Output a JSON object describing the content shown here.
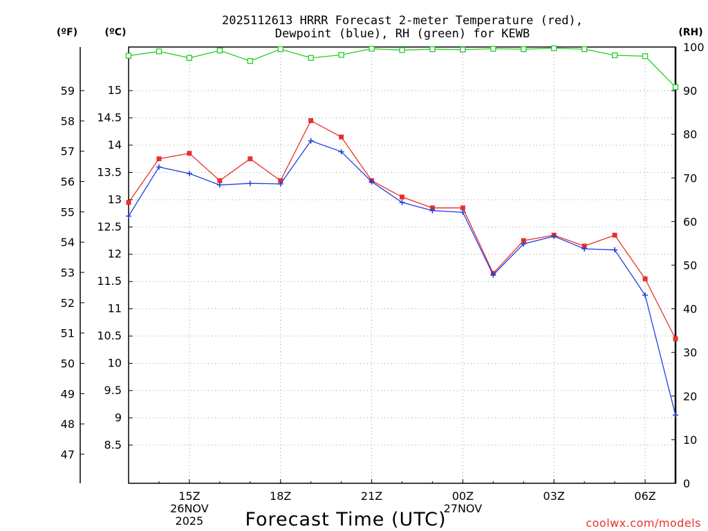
{
  "chart_data": {
    "type": "line",
    "title_line1": "2025112613 HRRR Forecast 2-meter Temperature (red),",
    "title_line2": "Dewpoint (blue), RH (green) for KEWB",
    "xlabel": "Forecast Time (UTC)",
    "credit": "coolwx.com/models",
    "unit_f": "(ºF)",
    "unit_c": "(ºC)",
    "unit_rh": "(RH)",
    "x_hours": [
      13,
      14,
      15,
      16,
      17,
      18,
      19,
      20,
      21,
      22,
      23,
      24,
      25,
      26,
      27,
      28,
      29,
      30,
      31
    ],
    "x_ticks": [
      {
        "hour": 15,
        "lines": [
          "15Z",
          "26NOV",
          "2025"
        ]
      },
      {
        "hour": 18,
        "lines": [
          "18Z"
        ]
      },
      {
        "hour": 21,
        "lines": [
          "21Z"
        ]
      },
      {
        "hour": 24,
        "lines": [
          "00Z",
          "27NOV"
        ]
      },
      {
        "hour": 27,
        "lines": [
          "03Z"
        ]
      },
      {
        "hour": 30,
        "lines": [
          "06Z"
        ]
      }
    ],
    "xlim": [
      13,
      31
    ],
    "ylim_c": [
      7.8,
      15.8
    ],
    "c_ticks": [
      "8.5",
      "9",
      "9.5",
      "10",
      "10.5",
      "11",
      "11.5",
      "12",
      "12.5",
      "13",
      "13.5",
      "14",
      "14.5",
      "15"
    ],
    "f_ticks": [
      "47",
      "48",
      "49",
      "50",
      "51",
      "52",
      "53",
      "54",
      "55",
      "56",
      "57",
      "58",
      "59"
    ],
    "rh_ticks": [
      "0",
      "10",
      "20",
      "30",
      "40",
      "50",
      "60",
      "70",
      "80",
      "90",
      "100"
    ],
    "rh_lim": [
      0,
      100
    ],
    "series": [
      {
        "name": "Temperature",
        "unit": "C",
        "color": "#e8302a",
        "values": [
          12.95,
          13.75,
          13.85,
          13.35,
          13.75,
          13.35,
          14.45,
          14.15,
          13.35,
          13.05,
          12.85,
          12.85,
          11.65,
          12.25,
          12.35,
          12.15,
          12.35,
          11.55,
          10.45
        ]
      },
      {
        "name": "Dewpoint",
        "unit": "C",
        "color": "#1f3fe0",
        "values": [
          12.7,
          13.6,
          13.48,
          13.27,
          13.3,
          13.29,
          14.08,
          13.88,
          13.33,
          12.95,
          12.8,
          12.77,
          11.62,
          12.19,
          12.33,
          12.1,
          12.08,
          11.25,
          9.05
        ]
      },
      {
        "name": "RH",
        "unit": "%",
        "color": "#22cc22",
        "values": [
          98,
          99,
          97.5,
          99.2,
          96.8,
          99.5,
          97.5,
          98.2,
          99.6,
          99.3,
          99.5,
          99.4,
          99.6,
          99.5,
          99.7,
          99.5,
          98.1,
          97.9,
          90.8
        ]
      }
    ]
  }
}
